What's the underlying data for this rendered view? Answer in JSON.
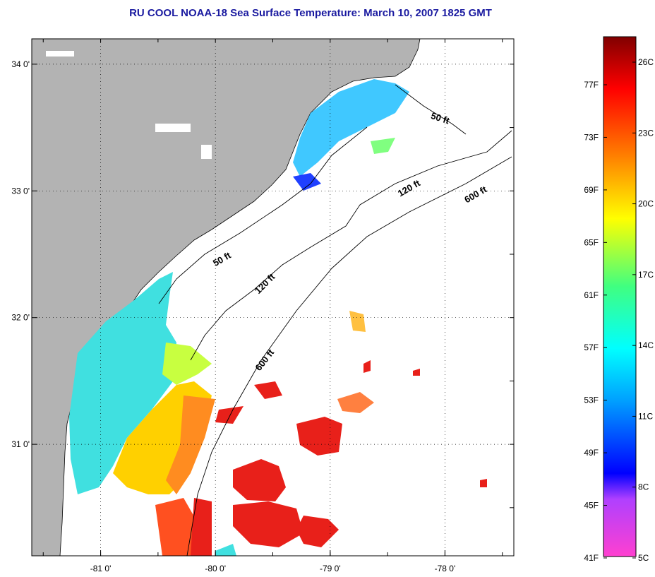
{
  "title": "RU COOL  NOAA-18  Sea Surface Temperature:  March 10, 2007 1825 GMT",
  "map": {
    "lat_ticks": [
      "34 0'",
      "33 0'",
      "32 0'",
      "31 0'"
    ],
    "lon_ticks": [
      "-81 0'",
      "-80 0'",
      "-79 0'",
      "-78 0'"
    ],
    "lon_range": [
      -81.6,
      -77.4
    ],
    "lat_range": [
      30.12,
      34.2
    ],
    "depth_labels": [
      {
        "text": "50 ft",
        "lon": -78.05,
        "lat": 33.55,
        "angle": 18
      },
      {
        "text": "120 ft",
        "lon": -78.3,
        "lat": 33.0,
        "angle": -30
      },
      {
        "text": "600 ft",
        "lon": -77.72,
        "lat": 32.95,
        "angle": -30
      },
      {
        "text": "50 ft",
        "lon": -79.93,
        "lat": 32.44,
        "angle": -30
      },
      {
        "text": "120 ft",
        "lon": -79.55,
        "lat": 32.25,
        "angle": -45
      },
      {
        "text": "600 ft",
        "lon": -79.55,
        "lat": 31.65,
        "angle": -52
      }
    ],
    "colors": {
      "land": "#b3b3b3",
      "coast": "#000000"
    }
  },
  "colorbar": {
    "fahrenheit_labels": [
      "77F",
      "73F",
      "69F",
      "65F",
      "61F",
      "57F",
      "53F",
      "49F",
      "45F",
      "41F"
    ],
    "celsius_labels": [
      "26C",
      "23C",
      "20C",
      "17C",
      "14C",
      "11C",
      "8C",
      "5C"
    ],
    "stops": [
      "#ff40d0",
      "#b040ff",
      "#0000ff",
      "#00a0ff",
      "#00ffff",
      "#40ff80",
      "#ffff00",
      "#ff8000",
      "#ff0000",
      "#800000"
    ]
  }
}
